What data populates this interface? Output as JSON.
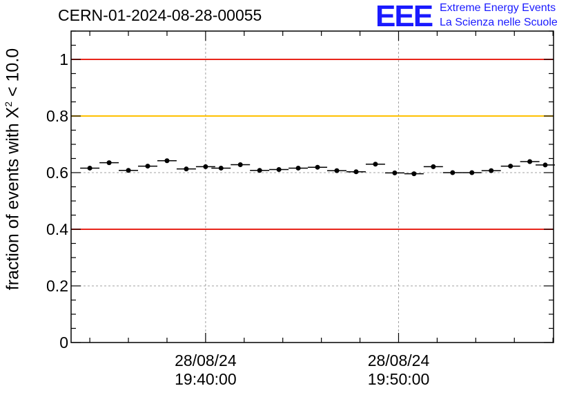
{
  "title": "CERN-01-2024-08-28-00055",
  "logo": {
    "mark": "EEE",
    "line1": "Extreme Energy Events",
    "line2": "La Scienza nelle Scuole",
    "color": "#1a1aff"
  },
  "chart_data": {
    "type": "scatter",
    "title": "CERN-01-2024-08-28-00055",
    "ylabel": {
      "prefix": "fraction of events with ",
      "symbol": "X",
      "sup": "2",
      "suffix": " < 10.0"
    },
    "ylim": [
      0,
      1.1
    ],
    "yticks": [
      0,
      0.2,
      0.4,
      0.6,
      0.8,
      1
    ],
    "ytick_labels": [
      "0",
      "0.2",
      "0.4",
      "0.6",
      "0.8",
      "1"
    ],
    "xlim_minutes": [
      -6.97,
      18.03
    ],
    "xticks": [
      {
        "minute": 0,
        "date": "28/08/24",
        "time": "19:40:00"
      },
      {
        "minute": 10,
        "date": "28/08/24",
        "time": "19:50:00"
      }
    ],
    "x_minutes": [
      -6.0,
      -5.0,
      -4.0,
      -3.0,
      -2.0,
      -1.0,
      0.0,
      0.8,
      1.8,
      2.8,
      3.8,
      4.8,
      5.8,
      6.8,
      7.8,
      8.8,
      9.8,
      10.8,
      11.8,
      12.8,
      13.8,
      14.8,
      15.8,
      16.8,
      17.6
    ],
    "y": [
      0.616,
      0.635,
      0.608,
      0.623,
      0.642,
      0.613,
      0.621,
      0.616,
      0.628,
      0.608,
      0.611,
      0.616,
      0.619,
      0.607,
      0.603,
      0.63,
      0.599,
      0.596,
      0.621,
      0.6,
      0.6,
      0.607,
      0.623,
      0.639,
      0.627
    ],
    "reference_lines": [
      {
        "y": 1.0,
        "color": "#e8241a"
      },
      {
        "y": 0.8,
        "color": "#ffc000"
      },
      {
        "y": 0.4,
        "color": "#e8241a"
      }
    ],
    "grid_y": [
      0.2,
      0.6
    ],
    "grid_x_minutes": [
      0,
      10
    ],
    "grid": true
  }
}
